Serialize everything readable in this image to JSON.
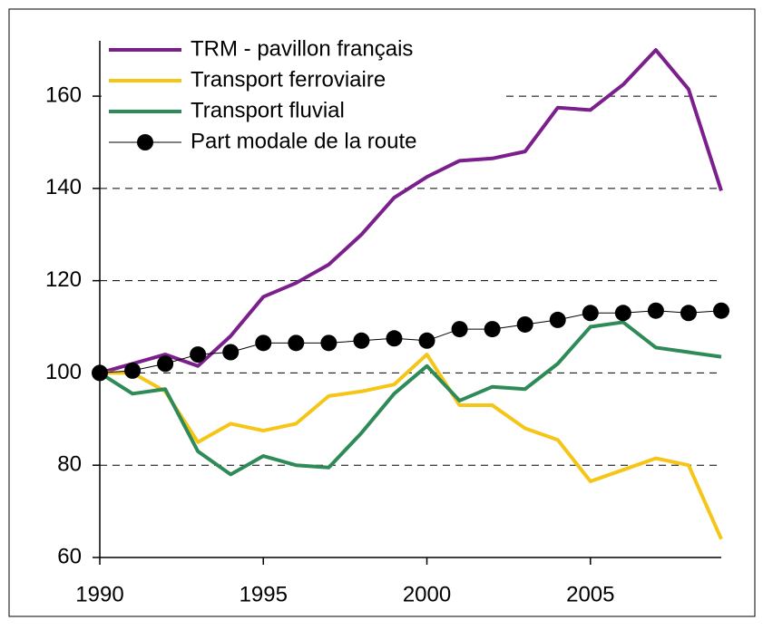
{
  "chart_data": {
    "type": "line",
    "x": [
      1990,
      1991,
      1992,
      1993,
      1994,
      1995,
      1996,
      1997,
      1998,
      1999,
      2000,
      2001,
      2002,
      2003,
      2004,
      2005,
      2006,
      2007,
      2008,
      2009
    ],
    "series": [
      {
        "name": "TRM - pavillon français",
        "color": "#7b1f8c",
        "values": [
          100,
          102,
          104,
          101.5,
          108,
          116.5,
          119.5,
          123.5,
          130,
          138,
          142.5,
          146,
          146.5,
          148,
          157.5,
          157,
          162.5,
          170,
          161.5,
          139.5
        ]
      },
      {
        "name": "Transport ferroviaire",
        "color": "#f5c518",
        "values": [
          100,
          100,
          96,
          85,
          89,
          87.5,
          89,
          95,
          96,
          97.5,
          104,
          93,
          93,
          88,
          85.5,
          76.5,
          79,
          81.5,
          80,
          64
        ]
      },
      {
        "name": "Transport fluvial",
        "color": "#2e8b57",
        "values": [
          100,
          95.5,
          96.5,
          83,
          78,
          82,
          80,
          79.5,
          87,
          95.5,
          101.5,
          94,
          97,
          96.5,
          102,
          110,
          111,
          105.5,
          104.5,
          103.5
        ]
      },
      {
        "name": "Part modale de la route",
        "color": "#000000",
        "marker": "circle",
        "values": [
          100,
          100.5,
          102,
          104,
          104.5,
          106.5,
          106.5,
          106.5,
          107,
          107.5,
          107,
          109.5,
          109.5,
          110.5,
          111.5,
          113,
          113,
          113.5,
          113,
          113.5
        ]
      }
    ],
    "xlim": [
      1990,
      2009
    ],
    "xticks": [
      1990,
      1995,
      2000,
      2005
    ],
    "ylim": [
      60,
      172
    ],
    "yticks": [
      60,
      80,
      100,
      120,
      140,
      160
    ],
    "grid": true,
    "legend": "upper left"
  }
}
